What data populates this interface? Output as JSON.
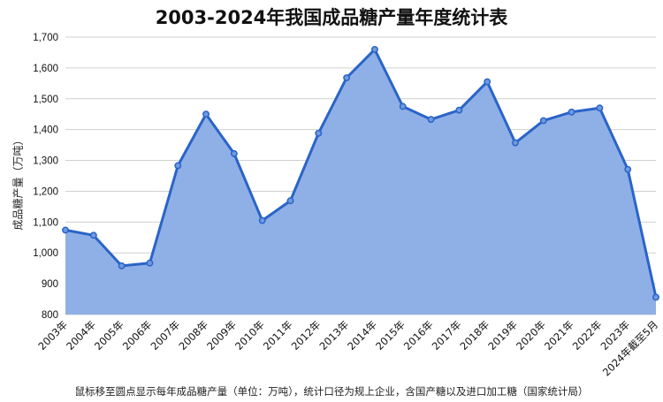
{
  "chart_data": {
    "type": "area",
    "title": "2003-2024年我国成品糖产量年度统计表",
    "ylabel": "成品糖产量（万吨）",
    "xlabel": "",
    "footnote": "鼠标移至圆点显示每年成品糖产量（单位：万吨），统计口径为规上企业，含国产糖以及进口加工糖（国家统计局）",
    "categories": [
      "2003年",
      "2004年",
      "2005年",
      "2006年",
      "2007年",
      "2008年",
      "2009年",
      "2010年",
      "2011年",
      "2012年",
      "2013年",
      "2014年",
      "2015年",
      "2016年",
      "2017年",
      "2018年",
      "2019年",
      "2020年",
      "2021年",
      "2022年",
      "2023年",
      "2024年截至5月"
    ],
    "values": [
      1074,
      1057,
      958,
      967,
      1283,
      1450,
      1322,
      1105,
      1169,
      1388,
      1568,
      1660,
      1475,
      1433,
      1463,
      1555,
      1357,
      1429,
      1457,
      1470,
      1271,
      856
    ],
    "ylim": [
      800,
      1700
    ],
    "yticks": [
      "800",
      "900",
      "1,000",
      "1,100",
      "1,200",
      "1,300",
      "1,400",
      "1,500",
      "1,600",
      "1,700"
    ],
    "grid": true,
    "legend": "none",
    "colors": {
      "line": "#2a64c8",
      "fill": "#8fb0e6",
      "grid": "#d0d0d0"
    }
  }
}
